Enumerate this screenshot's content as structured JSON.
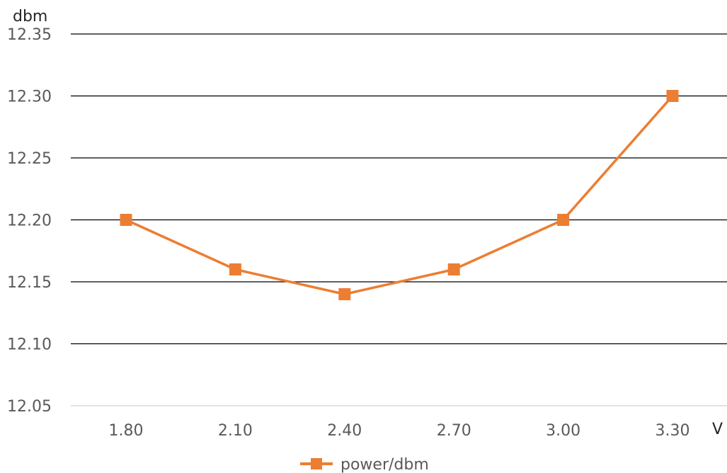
{
  "chart_data": {
    "type": "line",
    "x": [
      "1.80",
      "2.10",
      "2.40",
      "2.70",
      "3.00",
      "3.30"
    ],
    "series": [
      {
        "name": "power/dbm",
        "values": [
          12.2,
          12.16,
          12.14,
          12.16,
          12.2,
          12.3
        ],
        "color": "#ED7D31",
        "marker": "square"
      }
    ],
    "yticks": [
      "12.05",
      "12.10",
      "12.15",
      "12.20",
      "12.25",
      "12.30",
      "12.35"
    ],
    "ylim": [
      12.05,
      12.35
    ],
    "xlabel": "V",
    "ylabel": "dbm",
    "grid": "horizontal",
    "legend_position": "bottom"
  }
}
